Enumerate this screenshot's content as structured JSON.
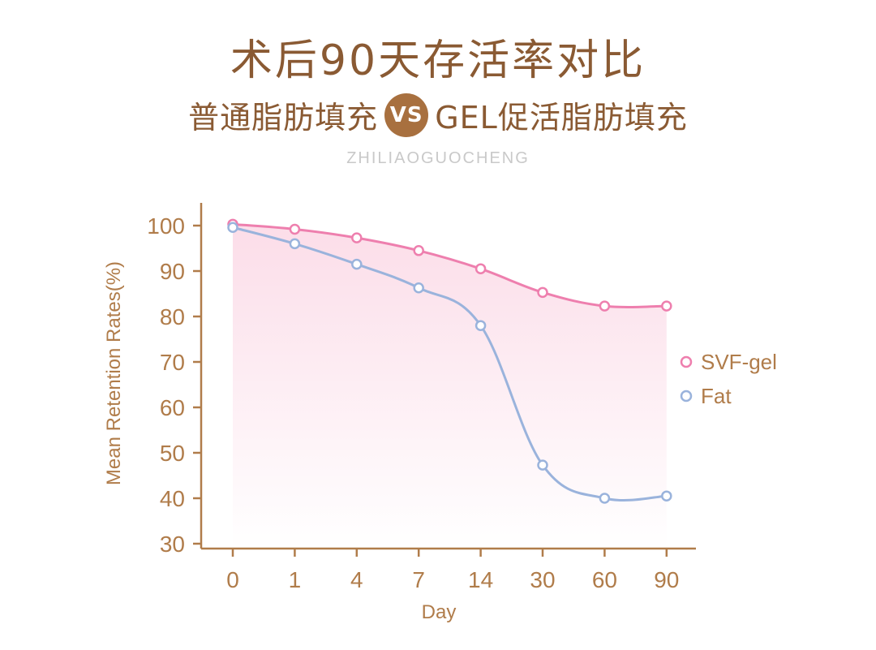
{
  "header": {
    "title": "术后90天存活率对比",
    "subtitle_left": "普通脂肪填充",
    "vs": "VS",
    "subtitle_right": "GEL促活脂肪填充",
    "watermark": "ZHILIAOGUOCHENG"
  },
  "colors": {
    "title": "#8a5a33",
    "axis": "#b07c4a",
    "svf_gel": "#ee7fae",
    "fat": "#9ab3dc",
    "fill_top": "#fbd9e6"
  },
  "chart_data": {
    "type": "line",
    "categories": [
      "0",
      "1",
      "4",
      "7",
      "14",
      "30",
      "60",
      "90"
    ],
    "xlabel": "Day",
    "ylabel": "Mean Retention Rates(%)",
    "ylim": [
      30,
      100
    ],
    "yticks": [
      "30",
      "40",
      "50",
      "60",
      "70",
      "80",
      "90",
      "100"
    ],
    "grid": false,
    "legend_position": "right",
    "series": [
      {
        "name": "SVF-gel",
        "values": [
          100.3,
          99.2,
          97.3,
          94.5,
          90.5,
          85.3,
          82.3,
          82.3
        ]
      },
      {
        "name": "Fat",
        "values": [
          99.6,
          96.0,
          91.5,
          86.3,
          78.0,
          47.3,
          40.0,
          40.5
        ]
      }
    ]
  }
}
